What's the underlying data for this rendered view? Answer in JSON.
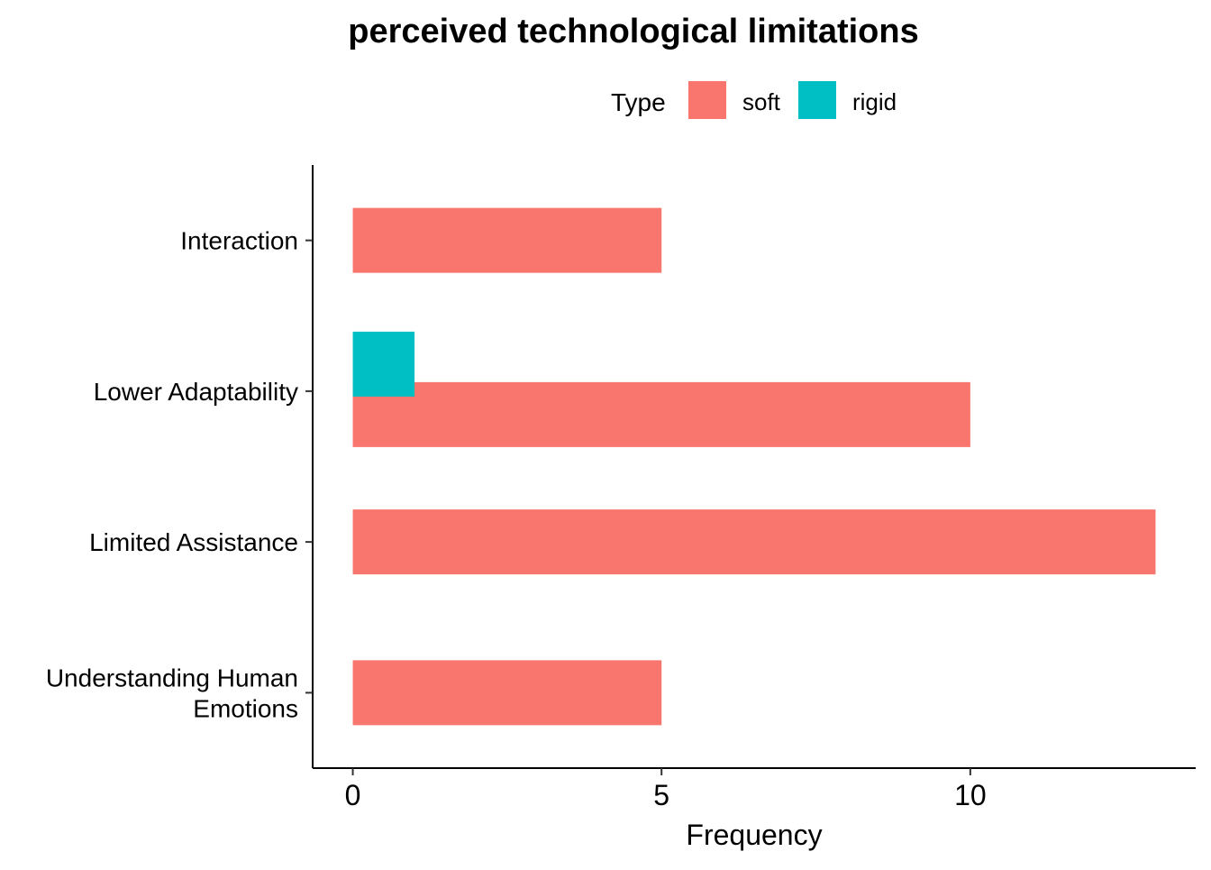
{
  "chart_data": {
    "type": "bar",
    "orientation": "horizontal",
    "title": "perceived technological limitations",
    "xlabel": "Frequency",
    "ylabel": "",
    "xlim": [
      -0.65,
      13.65
    ],
    "x_ticks": [
      0,
      5,
      10
    ],
    "categories": [
      [
        "Interaction"
      ],
      [
        "Lower Adaptability"
      ],
      [
        "Limited Assistance"
      ],
      [
        "Understanding Human",
        "Emotions"
      ]
    ],
    "legend": {
      "title": "Type",
      "placement": "top",
      "entries": [
        {
          "name": "soft",
          "color": "#F8766D"
        },
        {
          "name": "rigid",
          "color": "#00BFC4"
        }
      ]
    },
    "series": [
      {
        "name": "soft",
        "color": "#F8766D",
        "values": [
          5,
          10,
          13,
          5
        ]
      },
      {
        "name": "rigid",
        "color": "#00BFC4",
        "values": [
          0,
          1,
          0,
          0
        ]
      }
    ],
    "grid": false
  }
}
